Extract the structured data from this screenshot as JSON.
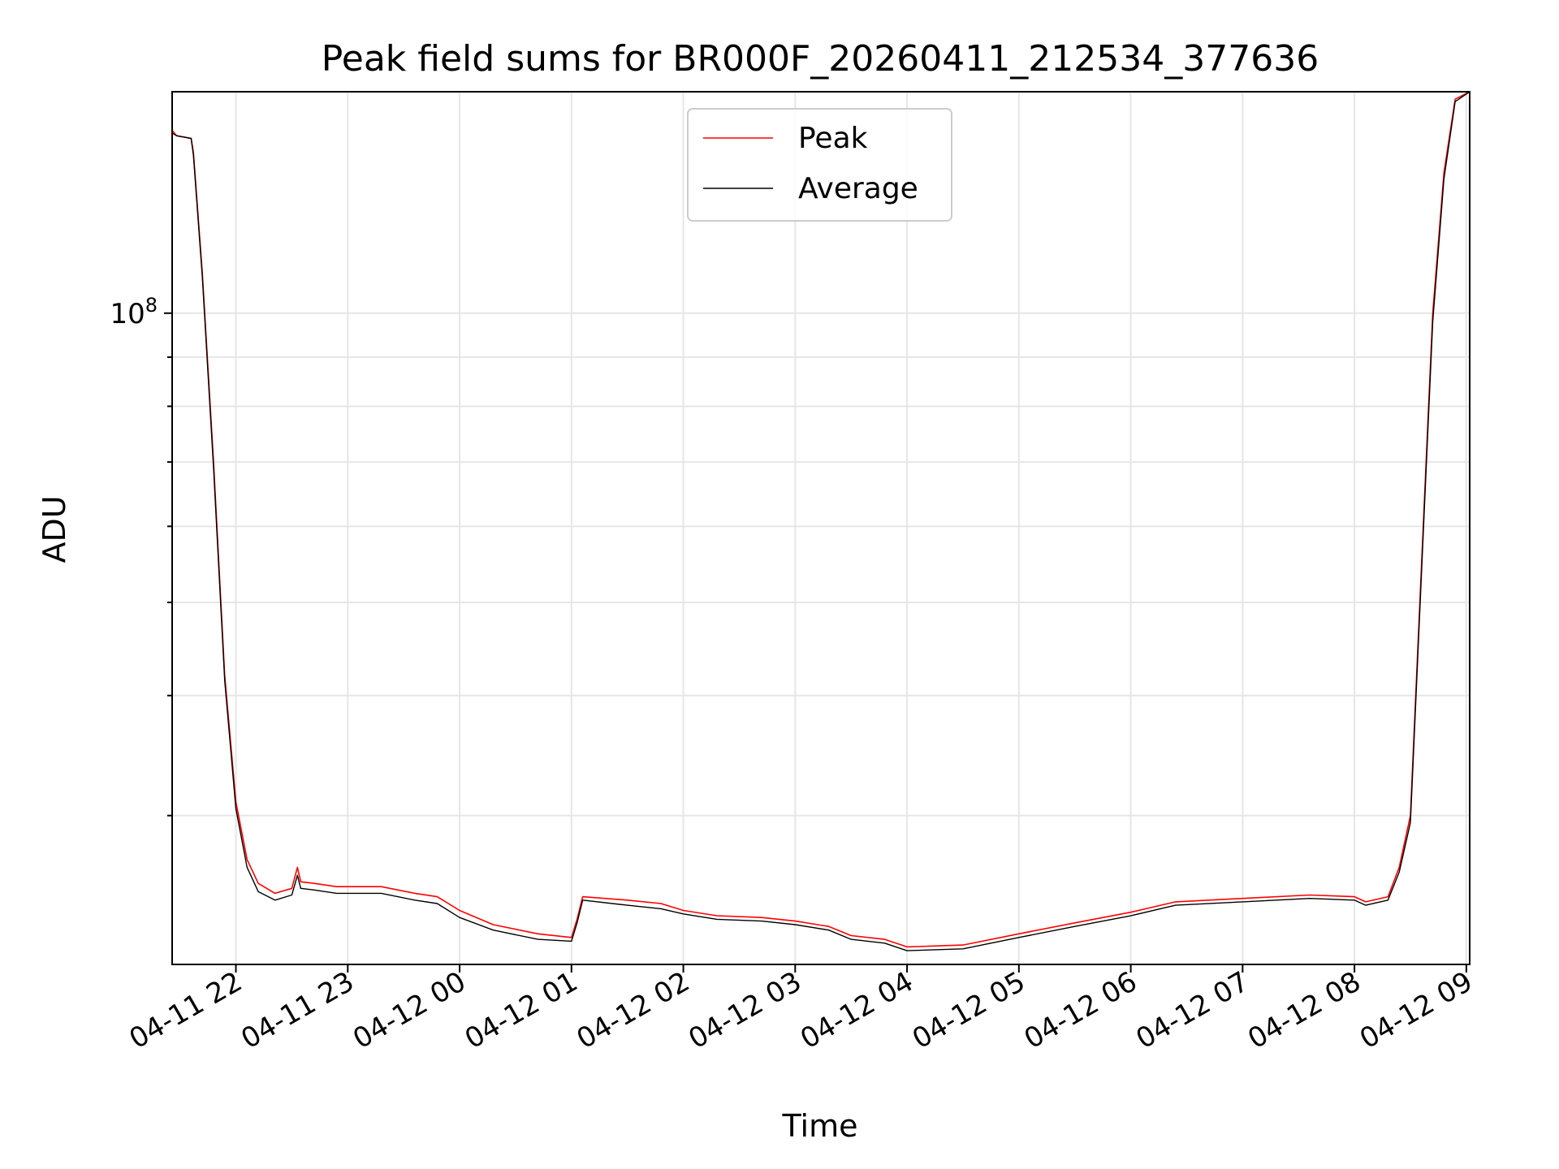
{
  "chart_data": {
    "type": "line",
    "title": "Peak field sums for BR000F_20260411_212534_377636",
    "xlabel": "Time",
    "ylabel": "ADU",
    "yscale": "log",
    "ylim": [
      21000000,
      170000000
    ],
    "xlim_hours": [
      -0.57,
      11.03
    ],
    "grid": true,
    "legend_position": "top-center",
    "x_ticks": [
      {
        "label": "04-11 22",
        "hour": 0
      },
      {
        "label": "04-11 23",
        "hour": 1
      },
      {
        "label": "04-12 00",
        "hour": 2
      },
      {
        "label": "04-12 01",
        "hour": 3
      },
      {
        "label": "04-12 02",
        "hour": 4
      },
      {
        "label": "04-12 03",
        "hour": 5
      },
      {
        "label": "04-12 04",
        "hour": 6
      },
      {
        "label": "04-12 05",
        "hour": 7
      },
      {
        "label": "04-12 06",
        "hour": 8
      },
      {
        "label": "04-12 07",
        "hour": 9
      },
      {
        "label": "04-12 08",
        "hour": 10
      },
      {
        "label": "04-12 09",
        "hour": 11
      }
    ],
    "y_ticks": [
      {
        "mantissa": "10",
        "exponent": "8",
        "value": 100000000
      }
    ],
    "x_units": "hours relative to 04-11 22:00",
    "series": [
      {
        "name": "Peak",
        "color": "#ff0000",
        "points": [
          [
            -0.57,
            155000000
          ],
          [
            -0.53,
            153000000
          ],
          [
            -0.4,
            152000000
          ],
          [
            -0.38,
            147000000
          ],
          [
            -0.3,
            110000000
          ],
          [
            -0.2,
            70000000
          ],
          [
            -0.1,
            42000000
          ],
          [
            0.0,
            31000000
          ],
          [
            0.1,
            27000000
          ],
          [
            0.2,
            25500000
          ],
          [
            0.35,
            24900000
          ],
          [
            0.5,
            25200000
          ],
          [
            0.55,
            26500000
          ],
          [
            0.58,
            25600000
          ],
          [
            0.7,
            25500000
          ],
          [
            0.9,
            25300000
          ],
          [
            1.3,
            25300000
          ],
          [
            1.6,
            24900000
          ],
          [
            1.8,
            24700000
          ],
          [
            2.0,
            23900000
          ],
          [
            2.3,
            23100000
          ],
          [
            2.7,
            22600000
          ],
          [
            3.0,
            22400000
          ],
          [
            3.05,
            23400000
          ],
          [
            3.1,
            24700000
          ],
          [
            3.5,
            24500000
          ],
          [
            3.8,
            24300000
          ],
          [
            4.0,
            23900000
          ],
          [
            4.3,
            23600000
          ],
          [
            4.7,
            23500000
          ],
          [
            5.0,
            23300000
          ],
          [
            5.3,
            23000000
          ],
          [
            5.5,
            22500000
          ],
          [
            5.8,
            22300000
          ],
          [
            6.0,
            21900000
          ],
          [
            6.5,
            22000000
          ],
          [
            7.0,
            22600000
          ],
          [
            7.5,
            23200000
          ],
          [
            8.0,
            23800000
          ],
          [
            8.4,
            24400000
          ],
          [
            9.0,
            24600000
          ],
          [
            9.6,
            24800000
          ],
          [
            10.0,
            24700000
          ],
          [
            10.1,
            24400000
          ],
          [
            10.3,
            24700000
          ],
          [
            10.4,
            26500000
          ],
          [
            10.5,
            30000000
          ],
          [
            10.6,
            55000000
          ],
          [
            10.7,
            100000000
          ],
          [
            10.8,
            140000000
          ],
          [
            10.9,
            167000000
          ],
          [
            11.03,
            170000000
          ]
        ]
      },
      {
        "name": "Average",
        "color": "#000000",
        "points": [
          [
            -0.57,
            154000000
          ],
          [
            -0.53,
            153000000
          ],
          [
            -0.4,
            152000000
          ],
          [
            -0.38,
            146000000
          ],
          [
            -0.3,
            109000000
          ],
          [
            -0.2,
            69000000
          ],
          [
            -0.1,
            41500000
          ],
          [
            0.0,
            30500000
          ],
          [
            0.1,
            26500000
          ],
          [
            0.2,
            25000000
          ],
          [
            0.35,
            24500000
          ],
          [
            0.5,
            24800000
          ],
          [
            0.55,
            26000000
          ],
          [
            0.58,
            25200000
          ],
          [
            0.7,
            25100000
          ],
          [
            0.9,
            24900000
          ],
          [
            1.3,
            24900000
          ],
          [
            1.6,
            24500000
          ],
          [
            1.8,
            24300000
          ],
          [
            2.0,
            23500000
          ],
          [
            2.3,
            22800000
          ],
          [
            2.7,
            22300000
          ],
          [
            3.0,
            22200000
          ],
          [
            3.05,
            23200000
          ],
          [
            3.1,
            24500000
          ],
          [
            3.5,
            24200000
          ],
          [
            3.8,
            24000000
          ],
          [
            4.0,
            23700000
          ],
          [
            4.3,
            23400000
          ],
          [
            4.7,
            23300000
          ],
          [
            5.0,
            23100000
          ],
          [
            5.3,
            22800000
          ],
          [
            5.5,
            22300000
          ],
          [
            5.8,
            22100000
          ],
          [
            6.0,
            21700000
          ],
          [
            6.5,
            21800000
          ],
          [
            7.0,
            22400000
          ],
          [
            7.5,
            23000000
          ],
          [
            8.0,
            23600000
          ],
          [
            8.4,
            24200000
          ],
          [
            9.0,
            24400000
          ],
          [
            9.6,
            24600000
          ],
          [
            10.0,
            24500000
          ],
          [
            10.1,
            24200000
          ],
          [
            10.3,
            24500000
          ],
          [
            10.4,
            26200000
          ],
          [
            10.5,
            29500000
          ],
          [
            10.6,
            54000000
          ],
          [
            10.7,
            98000000
          ],
          [
            10.8,
            138000000
          ],
          [
            10.9,
            166000000
          ],
          [
            11.03,
            170000000
          ]
        ]
      }
    ]
  }
}
